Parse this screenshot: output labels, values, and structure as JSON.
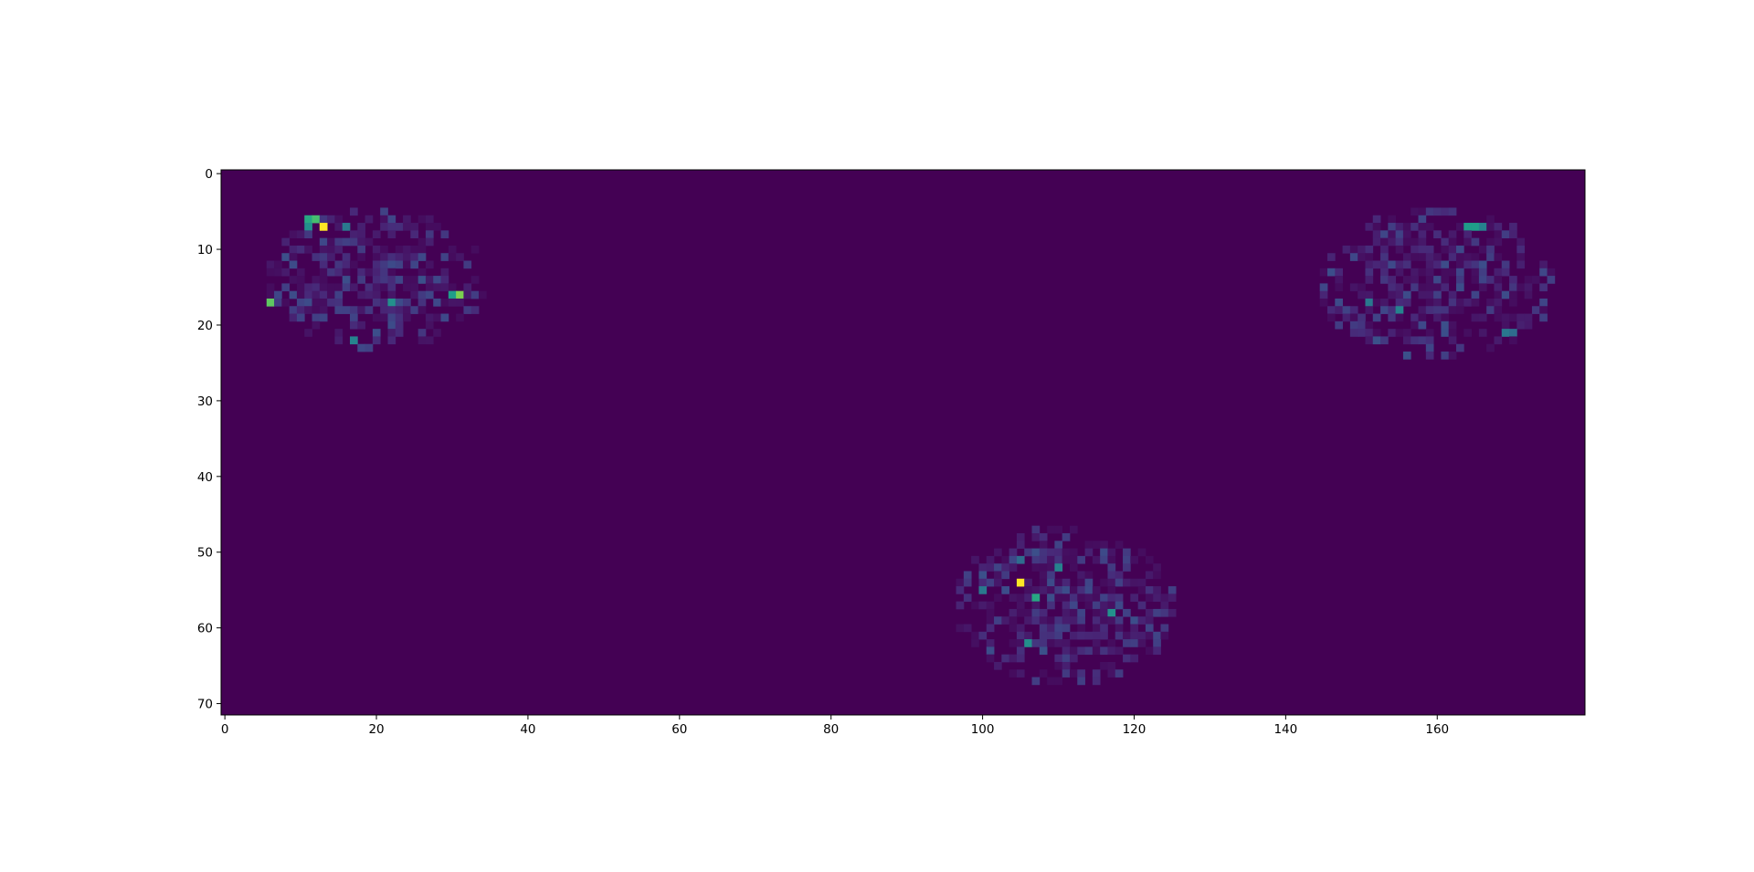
{
  "chart_data": {
    "type": "heatmap",
    "title": "",
    "xlabel": "",
    "ylabel": "",
    "colormap": "viridis",
    "background_color": "#440154",
    "grid": false,
    "legend": "none",
    "shape": {
      "rows": 72,
      "cols": 180
    },
    "xlim": [
      -0.5,
      179.5
    ],
    "ylim": [
      71.5,
      -0.5
    ],
    "xticks": [
      0,
      20,
      40,
      60,
      80,
      100,
      120,
      140,
      160
    ],
    "xtick_labels": [
      "0",
      "20",
      "40",
      "60",
      "80",
      "100",
      "120",
      "140",
      "160"
    ],
    "yticks": [
      0,
      10,
      20,
      30,
      40,
      50,
      60,
      70
    ],
    "ytick_labels": [
      "0",
      "10",
      "20",
      "30",
      "40",
      "50",
      "60",
      "70"
    ],
    "clusters": [
      {
        "row_range": [
          5,
          23
        ],
        "col_range": [
          6,
          34
        ],
        "peaks": [
          {
            "row": 7,
            "col": 13,
            "value": 1.0
          },
          {
            "row": 6,
            "col": 12,
            "value": 0.7
          },
          {
            "row": 6,
            "col": 11,
            "value": 0.6
          },
          {
            "row": 7,
            "col": 11,
            "value": 0.5
          },
          {
            "row": 16,
            "col": 31,
            "value": 0.8
          },
          {
            "row": 16,
            "col": 30,
            "value": 0.55
          },
          {
            "row": 17,
            "col": 6,
            "value": 0.75
          },
          {
            "row": 17,
            "col": 22,
            "value": 0.5
          },
          {
            "row": 22,
            "col": 17,
            "value": 0.45
          },
          {
            "row": 7,
            "col": 16,
            "value": 0.4
          }
        ]
      },
      {
        "row_range": [
          5,
          24
        ],
        "col_range": [
          145,
          175
        ],
        "peaks": [
          {
            "row": 7,
            "col": 164,
            "value": 0.55
          },
          {
            "row": 7,
            "col": 165,
            "value": 0.55
          },
          {
            "row": 7,
            "col": 166,
            "value": 0.45
          },
          {
            "row": 18,
            "col": 155,
            "value": 0.45
          },
          {
            "row": 17,
            "col": 151,
            "value": 0.4
          },
          {
            "row": 21,
            "col": 169,
            "value": 0.4
          },
          {
            "row": 21,
            "col": 170,
            "value": 0.35
          }
        ]
      },
      {
        "row_range": [
          47,
          67
        ],
        "col_range": [
          97,
          125
        ],
        "peaks": [
          {
            "row": 54,
            "col": 105,
            "value": 1.0
          },
          {
            "row": 56,
            "col": 107,
            "value": 0.6
          },
          {
            "row": 58,
            "col": 117,
            "value": 0.5
          },
          {
            "row": 52,
            "col": 110,
            "value": 0.45
          },
          {
            "row": 62,
            "col": 106,
            "value": 0.5
          },
          {
            "row": 55,
            "col": 100,
            "value": 0.4
          },
          {
            "row": 51,
            "col": 105,
            "value": 0.35
          }
        ]
      }
    ]
  }
}
